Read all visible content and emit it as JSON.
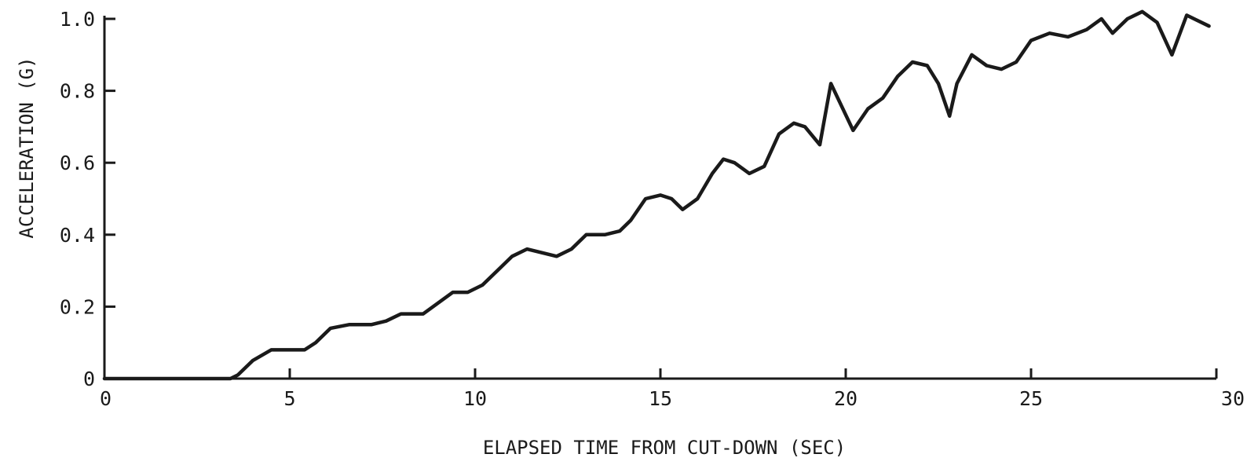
{
  "chart_data": {
    "type": "line",
    "xlabel": "ELAPSED TIME FROM CUT-DOWN (SEC)",
    "ylabel": "ACCELERATION (G)",
    "xlim": [
      0,
      30
    ],
    "ylim": [
      0,
      1.0
    ],
    "x_ticks": [
      0,
      5,
      10,
      15,
      20,
      25,
      30
    ],
    "x_tick_labels": [
      "0",
      "5",
      "10",
      "15",
      "20",
      "25",
      "30"
    ],
    "y_ticks": [
      0,
      0.2,
      0.4,
      0.6,
      0.8,
      1.0
    ],
    "y_tick_labels": [
      "0",
      "0.2",
      "0.4",
      "0.6",
      "0.8",
      "1.0"
    ],
    "grid": false,
    "series": [
      {
        "x": [
          0,
          3.4,
          3.6,
          4.0,
          4.5,
          5.0,
          5.4,
          5.7,
          6.1,
          6.6,
          7.2,
          7.6,
          8.0,
          8.6,
          9.0,
          9.4,
          9.8,
          10.2,
          10.6,
          11.0,
          11.4,
          11.8,
          12.2,
          12.6,
          13.0,
          13.5,
          13.9,
          14.2,
          14.6,
          15.0,
          15.3,
          15.6,
          16.0,
          16.4,
          16.7,
          17.0,
          17.4,
          17.8,
          18.2,
          18.6,
          18.9,
          19.3,
          19.6,
          20.2,
          20.6,
          21.0,
          21.4,
          21.8,
          22.2,
          22.5,
          22.8,
          23.0,
          23.4,
          23.8,
          24.2,
          24.6,
          25.0,
          25.5,
          26.0,
          26.5,
          26.9,
          27.2,
          27.6,
          28.0,
          28.4,
          28.8,
          29.2,
          29.8
        ],
        "y": [
          0,
          0,
          0.01,
          0.05,
          0.08,
          0.08,
          0.08,
          0.1,
          0.14,
          0.15,
          0.15,
          0.16,
          0.18,
          0.18,
          0.21,
          0.24,
          0.24,
          0.26,
          0.3,
          0.34,
          0.36,
          0.35,
          0.34,
          0.36,
          0.4,
          0.4,
          0.41,
          0.44,
          0.5,
          0.51,
          0.5,
          0.47,
          0.5,
          0.57,
          0.61,
          0.6,
          0.57,
          0.59,
          0.68,
          0.71,
          0.7,
          0.65,
          0.82,
          0.69,
          0.75,
          0.78,
          0.84,
          0.88,
          0.87,
          0.82,
          0.73,
          0.82,
          0.9,
          0.87,
          0.86,
          0.88,
          0.94,
          0.96,
          0.95,
          0.97,
          1.0,
          0.96,
          1.0,
          1.02,
          0.99,
          0.9,
          1.01,
          0.98
        ]
      }
    ]
  }
}
